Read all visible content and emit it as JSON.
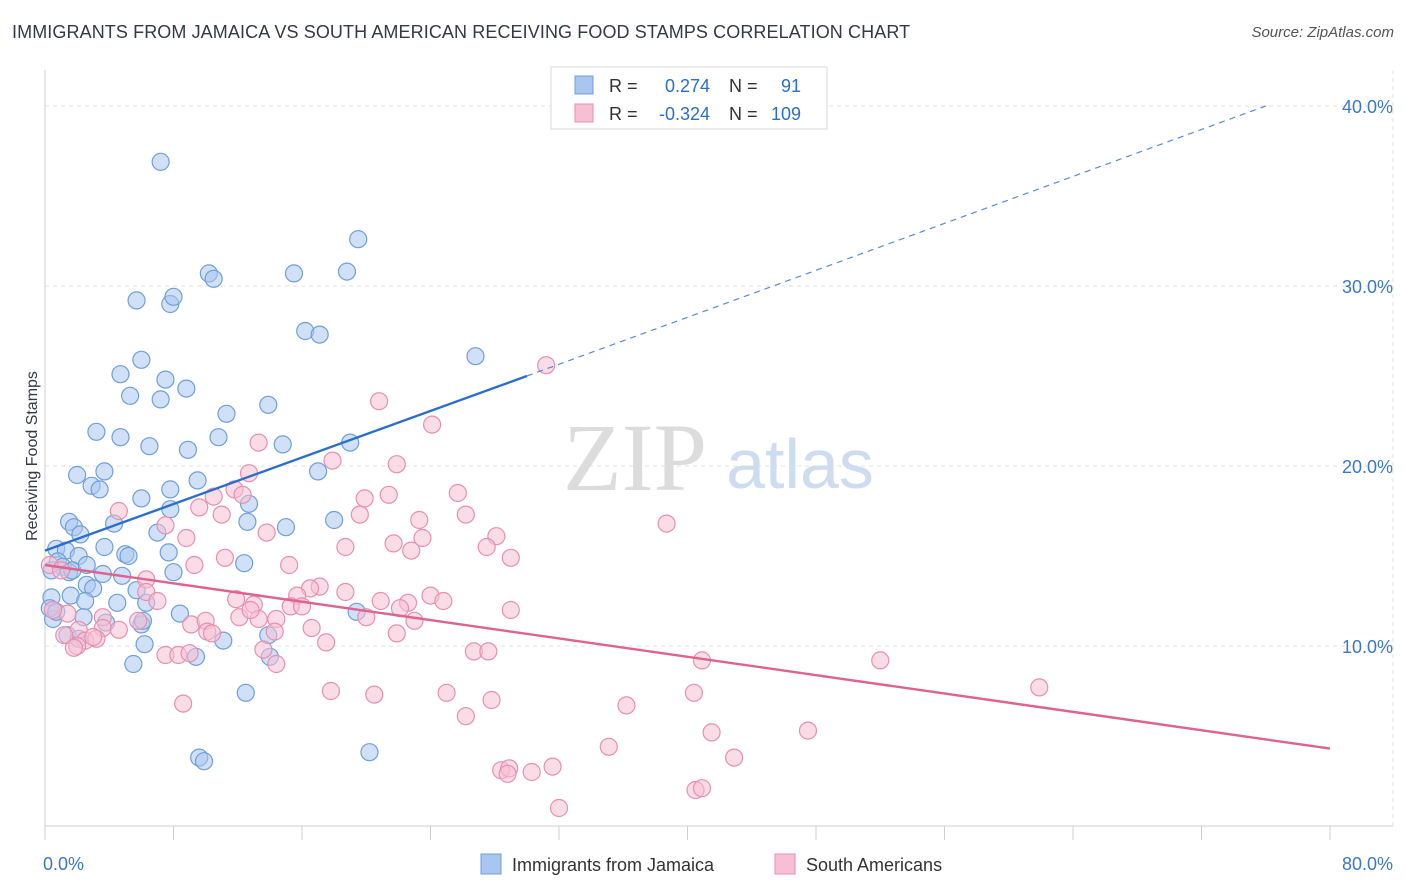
{
  "title": "IMMIGRANTS FROM JAMAICA VS SOUTH AMERICAN RECEIVING FOOD STAMPS CORRELATION CHART",
  "source": "Source: ZipAtlas.com",
  "watermark": {
    "zip": "ZIP",
    "atlas": "atlas"
  },
  "chart_data": {
    "type": "scatter",
    "ylabel": "Receiving Food Stamps",
    "xlim": [
      0,
      80
    ],
    "ylim": [
      0,
      42
    ],
    "x_tick_labels": [
      {
        "value": 0,
        "label": "0.0%"
      },
      {
        "value": 80,
        "label": "80.0%"
      }
    ],
    "y_tick_labels": [
      {
        "value": 10,
        "label": "10.0%"
      },
      {
        "value": 20,
        "label": "20.0%"
      },
      {
        "value": 30,
        "label": "30.0%"
      },
      {
        "value": 40,
        "label": "40.0%"
      }
    ],
    "grid": true,
    "legend_position": "bottom",
    "stats_box": [
      {
        "r_label": "R =",
        "r_value": "0.274",
        "n_label": "N =",
        "n_value": "91"
      },
      {
        "r_label": "R =",
        "r_value": "-0.324",
        "n_label": "N =",
        "n_value": "109"
      }
    ],
    "series": [
      {
        "name": "Immigrants from Jamaica",
        "color": "#6f9fdc",
        "fill": "#a9c6ee",
        "line_color": "#2a6fcf",
        "trend": {
          "x0": 0,
          "y0": 15.3,
          "x1": 30,
          "y1": 25.0,
          "dashed_to_x": 76,
          "dashed_to_y": 40.0
        },
        "points": [
          [
            7.2,
            36.9
          ],
          [
            19.5,
            32.6
          ],
          [
            10.2,
            30.7
          ],
          [
            15.5,
            30.7
          ],
          [
            18.8,
            30.8
          ],
          [
            10.5,
            30.4
          ],
          [
            5.7,
            29.2
          ],
          [
            7.8,
            29.0
          ],
          [
            8.0,
            29.4
          ],
          [
            16.2,
            27.5
          ],
          [
            17.1,
            27.3
          ],
          [
            26.8,
            26.1
          ],
          [
            6.0,
            25.9
          ],
          [
            4.7,
            25.1
          ],
          [
            7.5,
            24.8
          ],
          [
            8.8,
            24.3
          ],
          [
            5.3,
            23.9
          ],
          [
            7.2,
            23.7
          ],
          [
            13.9,
            23.4
          ],
          [
            11.3,
            22.9
          ],
          [
            3.2,
            21.9
          ],
          [
            4.7,
            21.6
          ],
          [
            10.8,
            21.6
          ],
          [
            6.5,
            21.1
          ],
          [
            14.8,
            21.2
          ],
          [
            19.0,
            21.3
          ],
          [
            8.9,
            20.9
          ],
          [
            2.0,
            19.5
          ],
          [
            3.7,
            19.7
          ],
          [
            17.0,
            19.7
          ],
          [
            2.9,
            18.9
          ],
          [
            3.4,
            18.7
          ],
          [
            6.0,
            18.2
          ],
          [
            7.8,
            18.7
          ],
          [
            9.5,
            19.2
          ],
          [
            12.7,
            17.9
          ],
          [
            7.8,
            17.6
          ],
          [
            1.5,
            16.9
          ],
          [
            1.8,
            16.6
          ],
          [
            4.3,
            16.8
          ],
          [
            2.2,
            16.2
          ],
          [
            3.7,
            15.5
          ],
          [
            12.6,
            16.9
          ],
          [
            15.0,
            16.6
          ],
          [
            7.0,
            16.3
          ],
          [
            0.7,
            15.4
          ],
          [
            1.3,
            15.3
          ],
          [
            2.1,
            15.0
          ],
          [
            0.8,
            14.7
          ],
          [
            1.1,
            14.4
          ],
          [
            1.5,
            14.1
          ],
          [
            5.0,
            15.1
          ],
          [
            5.2,
            15.0
          ],
          [
            7.7,
            15.2
          ],
          [
            12.4,
            14.6
          ],
          [
            0.4,
            14.2
          ],
          [
            1.7,
            14.2
          ],
          [
            3.6,
            14.0
          ],
          [
            4.8,
            13.9
          ],
          [
            8.0,
            14.1
          ],
          [
            2.6,
            13.4
          ],
          [
            3.0,
            13.2
          ],
          [
            5.7,
            13.1
          ],
          [
            0.4,
            12.7
          ],
          [
            1.6,
            12.8
          ],
          [
            2.5,
            12.5
          ],
          [
            4.5,
            12.4
          ],
          [
            6.3,
            12.4
          ],
          [
            8.4,
            11.8
          ],
          [
            0.5,
            11.5
          ],
          [
            0.3,
            12.1
          ],
          [
            2.4,
            11.6
          ],
          [
            3.8,
            11.3
          ],
          [
            6.0,
            11.2
          ],
          [
            6.1,
            11.4
          ],
          [
            1.4,
            10.6
          ],
          [
            2.1,
            10.4
          ],
          [
            11.1,
            10.3
          ],
          [
            13.9,
            10.6
          ],
          [
            19.4,
            11.9
          ],
          [
            6.2,
            10.1
          ],
          [
            5.5,
            9.0
          ],
          [
            9.4,
            9.4
          ],
          [
            14.0,
            9.4
          ],
          [
            12.5,
            7.4
          ],
          [
            9.6,
            3.8
          ],
          [
            9.9,
            3.6
          ],
          [
            20.2,
            4.1
          ],
          [
            0.7,
            11.9
          ],
          [
            18.0,
            17.0
          ],
          [
            2.6,
            14.5
          ]
        ]
      },
      {
        "name": "South Americans",
        "color": "#e88fb0",
        "fill": "#f6bfd3",
        "line_color": "#e0628f",
        "trend": {
          "x0": 0,
          "y0": 14.5,
          "x1": 80,
          "y1": 4.3
        },
        "points": [
          [
            31.2,
            25.6
          ],
          [
            20.8,
            23.6
          ],
          [
            24.1,
            22.3
          ],
          [
            13.3,
            21.3
          ],
          [
            21.9,
            20.1
          ],
          [
            17.9,
            20.3
          ],
          [
            12.7,
            19.6
          ],
          [
            11.8,
            18.7
          ],
          [
            12.3,
            18.4
          ],
          [
            10.5,
            18.3
          ],
          [
            19.9,
            18.2
          ],
          [
            21.4,
            18.4
          ],
          [
            25.7,
            18.5
          ],
          [
            9.6,
            17.7
          ],
          [
            11.0,
            17.3
          ],
          [
            19.6,
            17.3
          ],
          [
            23.3,
            17.0
          ],
          [
            26.2,
            17.3
          ],
          [
            38.7,
            16.8
          ],
          [
            4.6,
            17.5
          ],
          [
            7.5,
            16.7
          ],
          [
            13.8,
            16.3
          ],
          [
            21.7,
            15.7
          ],
          [
            23.5,
            16.0
          ],
          [
            28.1,
            16.1
          ],
          [
            8.8,
            16.0
          ],
          [
            18.7,
            15.5
          ],
          [
            22.8,
            15.3
          ],
          [
            27.5,
            15.5
          ],
          [
            29.0,
            14.9
          ],
          [
            11.2,
            14.9
          ],
          [
            15.2,
            14.5
          ],
          [
            0.3,
            14.5
          ],
          [
            1.0,
            14.2
          ],
          [
            6.3,
            13.7
          ],
          [
            6.3,
            13.0
          ],
          [
            9.3,
            14.5
          ],
          [
            17.1,
            13.3
          ],
          [
            16.5,
            13.2
          ],
          [
            18.7,
            13.0
          ],
          [
            24.0,
            12.8
          ],
          [
            24.8,
            12.5
          ],
          [
            15.7,
            12.8
          ],
          [
            11.9,
            12.6
          ],
          [
            13.0,
            12.3
          ],
          [
            15.3,
            12.2
          ],
          [
            16.0,
            12.2
          ],
          [
            20.9,
            12.5
          ],
          [
            22.6,
            12.4
          ],
          [
            29.0,
            12.0
          ],
          [
            1.4,
            11.8
          ],
          [
            3.6,
            11.6
          ],
          [
            5.8,
            11.4
          ],
          [
            7.0,
            12.5
          ],
          [
            9.1,
            11.2
          ],
          [
            10.0,
            11.4
          ],
          [
            12.1,
            11.6
          ],
          [
            13.3,
            11.5
          ],
          [
            14.4,
            11.5
          ],
          [
            20.0,
            11.6
          ],
          [
            23.0,
            11.4
          ],
          [
            2.1,
            10.9
          ],
          [
            3.6,
            11.0
          ],
          [
            4.6,
            10.9
          ],
          [
            10.1,
            10.8
          ],
          [
            10.4,
            10.7
          ],
          [
            14.3,
            10.8
          ],
          [
            16.6,
            11.0
          ],
          [
            17.5,
            10.2
          ],
          [
            21.9,
            10.7
          ],
          [
            2.5,
            10.3
          ],
          [
            3.2,
            10.4
          ],
          [
            2.0,
            10.0
          ],
          [
            3.0,
            10.5
          ],
          [
            7.5,
            9.5
          ],
          [
            8.3,
            9.5
          ],
          [
            9.0,
            9.6
          ],
          [
            13.6,
            9.8
          ],
          [
            14.4,
            9.0
          ],
          [
            26.7,
            9.7
          ],
          [
            27.6,
            9.7
          ],
          [
            40.9,
            9.2
          ],
          [
            52.0,
            9.2
          ],
          [
            61.9,
            7.7
          ],
          [
            8.6,
            6.8
          ],
          [
            17.8,
            7.5
          ],
          [
            20.5,
            7.3
          ],
          [
            25.0,
            7.4
          ],
          [
            27.8,
            7.0
          ],
          [
            36.2,
            6.7
          ],
          [
            40.4,
            7.4
          ],
          [
            26.2,
            6.1
          ],
          [
            41.5,
            5.2
          ],
          [
            47.5,
            5.3
          ],
          [
            35.1,
            4.4
          ],
          [
            42.9,
            3.8
          ],
          [
            28.4,
            3.1
          ],
          [
            28.9,
            3.2
          ],
          [
            30.3,
            3.0
          ],
          [
            28.8,
            2.9
          ],
          [
            31.6,
            3.3
          ],
          [
            40.5,
            2.0
          ],
          [
            40.9,
            2.1
          ],
          [
            32.0,
            1.0
          ],
          [
            1.2,
            10.6
          ],
          [
            0.5,
            12.0
          ],
          [
            1.8,
            9.9
          ],
          [
            12.8,
            12.0
          ],
          [
            22.1,
            12.1
          ]
        ]
      }
    ]
  }
}
